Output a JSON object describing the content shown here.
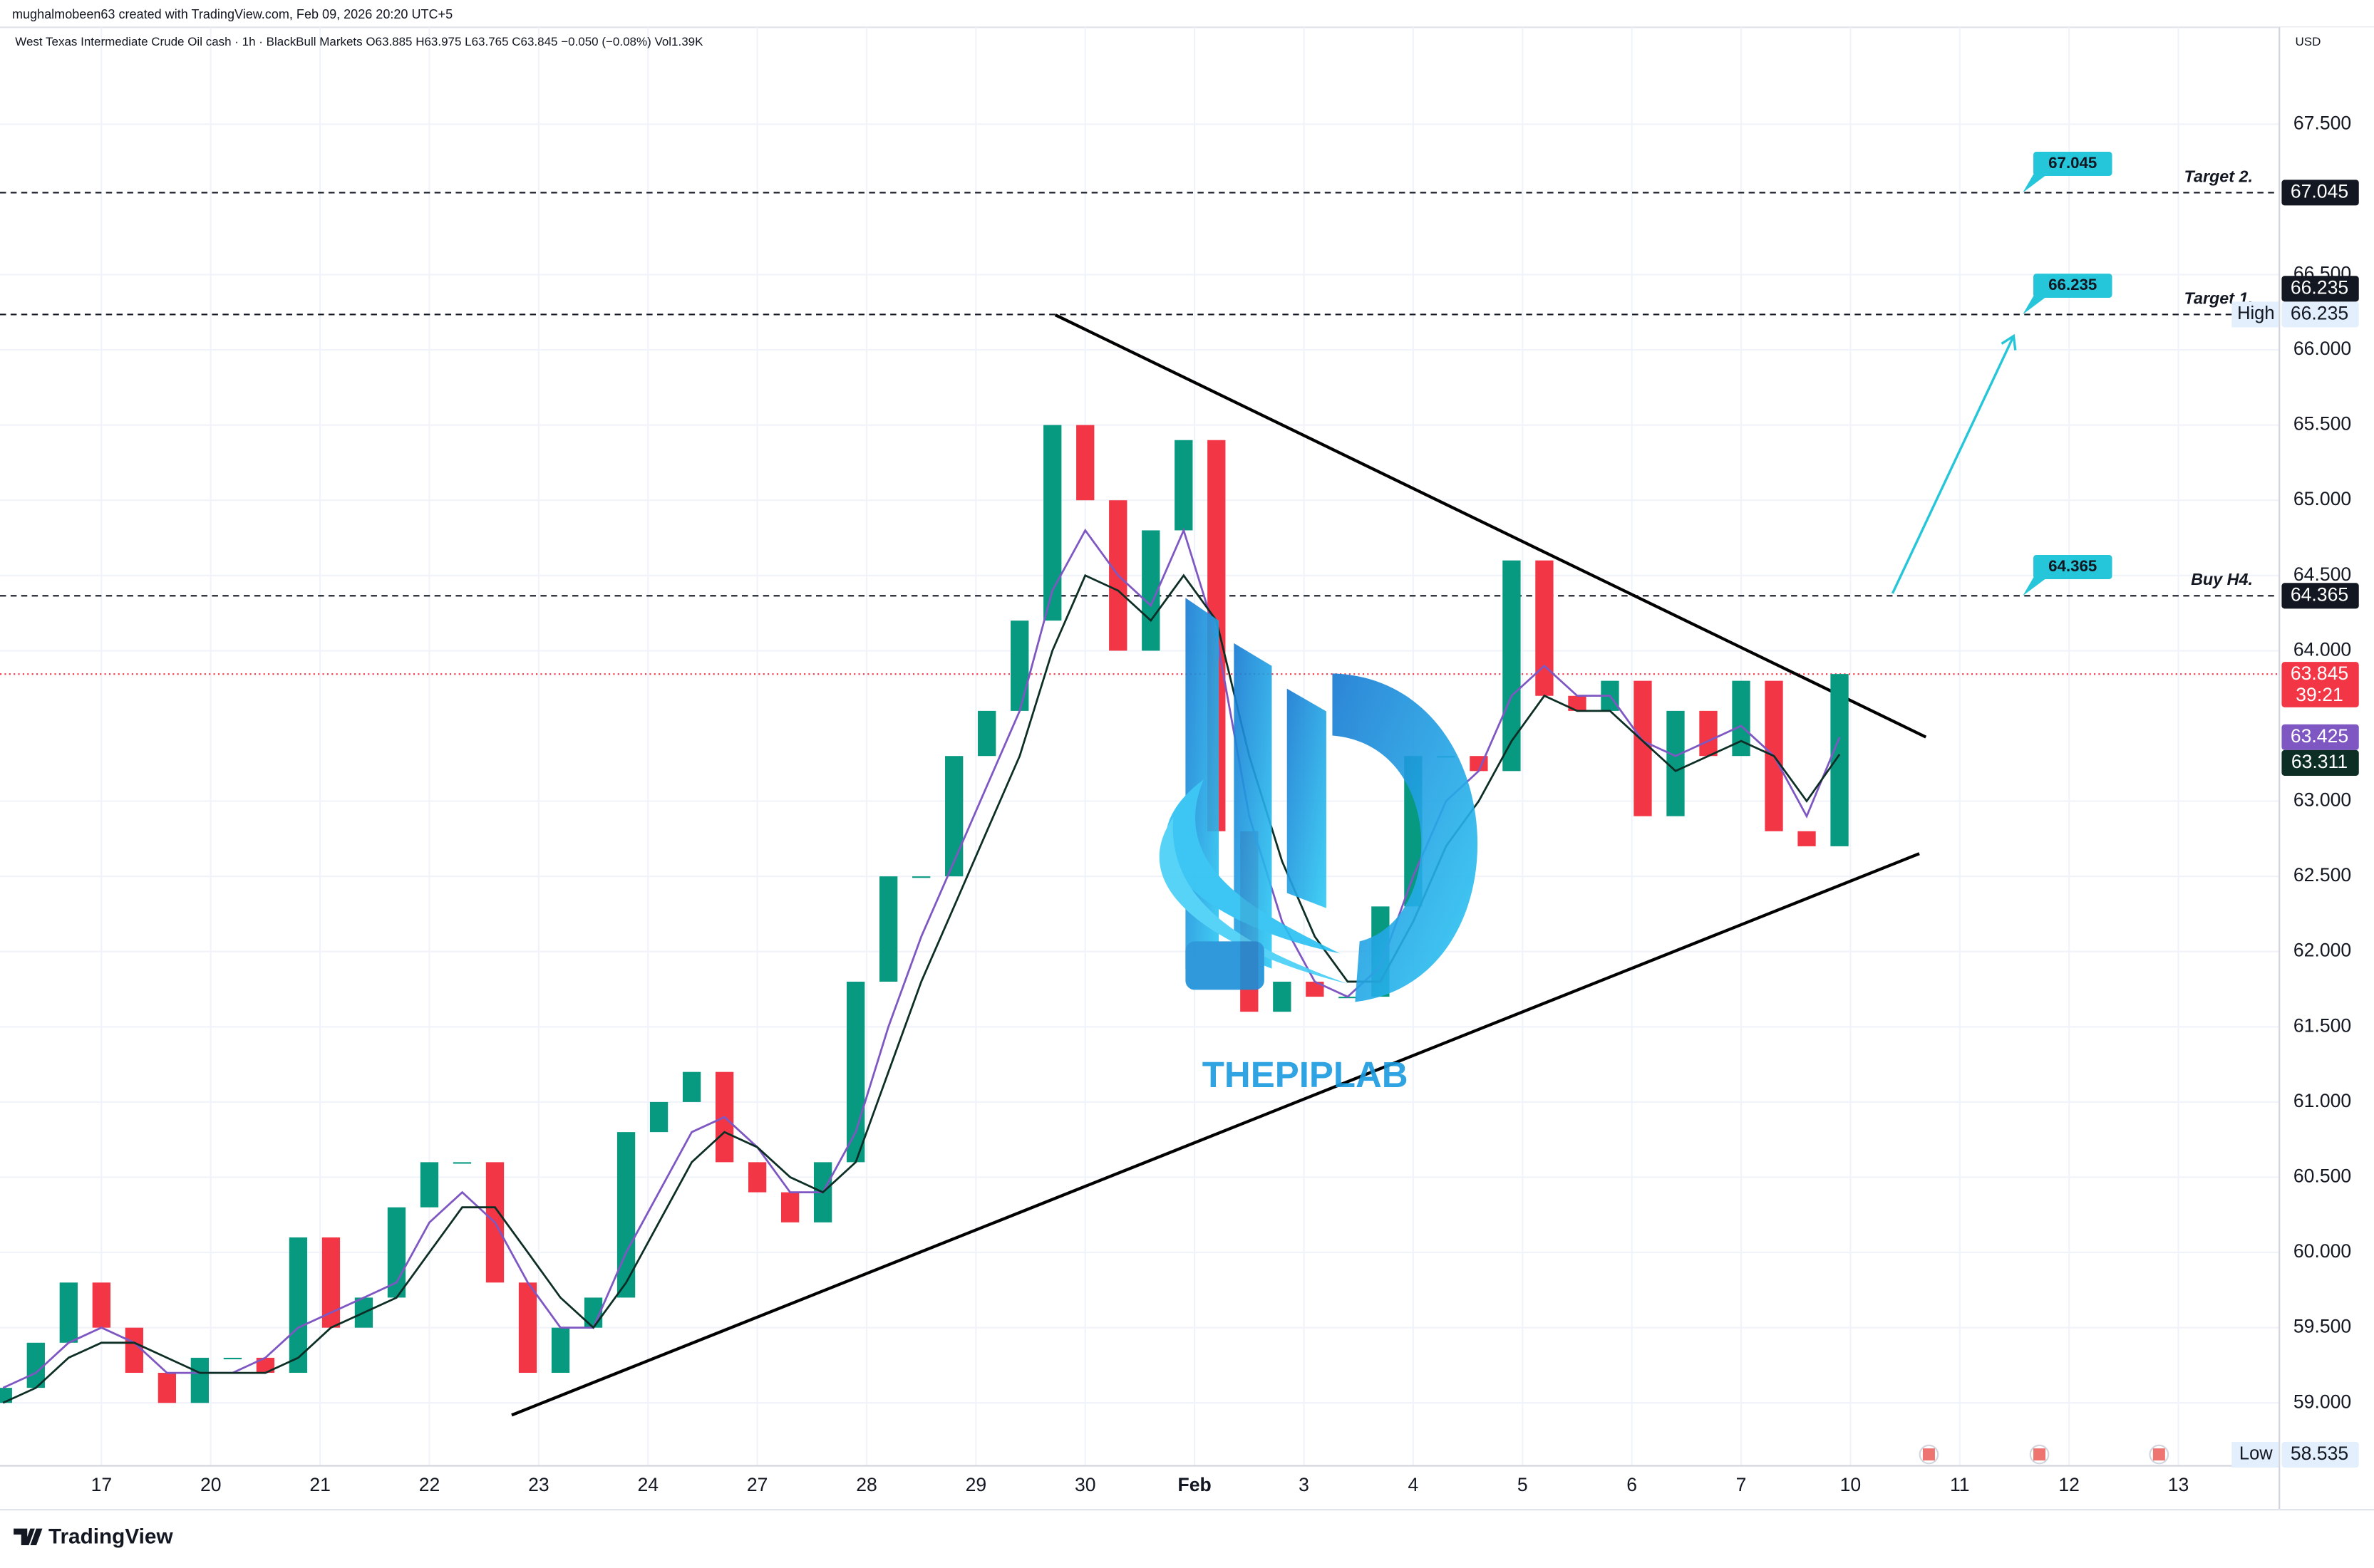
{
  "header": {
    "author_line": "mughalmobeen63 created with TradingView.com, Feb 09, 2026 20:20 UTC+5",
    "symbol_line": "West Texas Intermediate Crude Oil cash · 1h · BlackBull Markets  O63.885  H63.975  L63.765  C63.845  −0.050 (−0.08%)  Vol1.39K",
    "currency": "USD",
    "brand": "TradingView"
  },
  "chart_data": {
    "type": "candlestick",
    "x": [
      -0.9,
      -0.6,
      -0.3,
      0,
      0.3,
      0.6,
      0.9,
      1.2,
      1.5,
      1.8,
      2.1,
      2.4,
      2.7,
      3,
      3.3,
      3.6,
      3.9,
      4.2,
      4.5,
      4.8,
      5.1,
      5.4,
      5.7,
      6,
      6.3,
      6.6,
      6.9,
      7.2,
      7.5,
      7.8,
      8.1,
      8.4,
      8.7,
      9,
      9.3,
      9.6,
      9.9,
      10.2,
      10.5,
      10.8,
      11.1,
      11.4,
      11.7,
      12,
      12.3,
      12.6,
      12.9,
      13.2,
      13.5,
      13.8,
      14.1,
      14.4,
      14.7,
      15,
      15.3,
      15.6,
      15.9
    ],
    "open": [
      59.0,
      59.1,
      59.4,
      59.8,
      59.5,
      59.2,
      59.0,
      59.3,
      59.3,
      59.2,
      60.1,
      59.5,
      59.7,
      60.3,
      60.6,
      60.6,
      59.8,
      59.2,
      59.5,
      59.7,
      60.8,
      61.0,
      61.2,
      60.6,
      60.4,
      60.2,
      60.6,
      61.8,
      62.5,
      62.5,
      63.3,
      63.6,
      64.2,
      65.5,
      65.0,
      64.0,
      64.8,
      65.4,
      62.8,
      61.6,
      61.8,
      61.7,
      61.7,
      62.3,
      63.3,
      63.3,
      63.2,
      64.6,
      63.7,
      63.6,
      63.8,
      62.9,
      63.6,
      63.3,
      63.8,
      62.8,
      62.7
    ],
    "high": {
      "value": 66.235,
      "label": "High"
    },
    "low": {
      "value": 58.535,
      "label": "Low"
    },
    "close": [
      59.1,
      59.4,
      59.8,
      59.5,
      59.2,
      59.0,
      59.3,
      59.3,
      59.2,
      60.1,
      59.5,
      59.7,
      60.3,
      60.6,
      60.6,
      59.8,
      59.2,
      59.5,
      59.7,
      60.8,
      61.0,
      61.2,
      60.6,
      60.4,
      60.2,
      60.6,
      61.8,
      62.5,
      62.5,
      63.3,
      63.6,
      64.2,
      65.5,
      65.0,
      64.0,
      64.8,
      65.4,
      62.8,
      61.6,
      61.8,
      61.7,
      61.7,
      62.3,
      63.3,
      63.3,
      63.2,
      64.6,
      63.7,
      63.6,
      63.8,
      62.9,
      63.6,
      63.3,
      63.8,
      62.8,
      62.7,
      63.845
    ],
    "up_color": "#089981",
    "down_color": "#f23645",
    "overlays": [
      {
        "color": "#7e57c2",
        "values": [
          59.1,
          59.2,
          59.4,
          59.5,
          59.4,
          59.2,
          59.2,
          59.2,
          59.3,
          59.5,
          59.6,
          59.7,
          59.8,
          60.2,
          60.4,
          60.2,
          59.8,
          59.5,
          59.5,
          60.0,
          60.4,
          60.8,
          60.9,
          60.7,
          60.4,
          60.4,
          60.8,
          61.5,
          62.1,
          62.6,
          63.1,
          63.6,
          64.4,
          64.8,
          64.5,
          64.3,
          64.8,
          64.1,
          62.9,
          62.2,
          61.8,
          61.7,
          61.9,
          62.5,
          63.0,
          63.2,
          63.7,
          63.9,
          63.7,
          63.7,
          63.4,
          63.3,
          63.4,
          63.5,
          63.3,
          62.9,
          63.425
        ]
      },
      {
        "color": "#0d2e25",
        "values": [
          59.0,
          59.1,
          59.3,
          59.4,
          59.4,
          59.3,
          59.2,
          59.2,
          59.2,
          59.3,
          59.5,
          59.6,
          59.7,
          60.0,
          60.3,
          60.3,
          60.0,
          59.7,
          59.5,
          59.8,
          60.2,
          60.6,
          60.8,
          60.7,
          60.5,
          60.4,
          60.6,
          61.2,
          61.8,
          62.3,
          62.8,
          63.3,
          64.0,
          64.5,
          64.4,
          64.2,
          64.5,
          64.2,
          63.3,
          62.6,
          62.1,
          61.8,
          61.8,
          62.2,
          62.7,
          63.0,
          63.4,
          63.7,
          63.6,
          63.6,
          63.4,
          63.2,
          63.3,
          63.4,
          63.3,
          63.0,
          63.311
        ]
      }
    ],
    "xlim": [
      -0.928,
      19.917
    ],
    "xticks": [
      {
        "value": 0,
        "label": "17"
      },
      {
        "value": 1,
        "label": "20"
      },
      {
        "value": 2,
        "label": "21"
      },
      {
        "value": 3,
        "label": "22"
      },
      {
        "value": 4,
        "label": "23"
      },
      {
        "value": 5,
        "label": "24"
      },
      {
        "value": 6,
        "label": "27"
      },
      {
        "value": 7,
        "label": "28"
      },
      {
        "value": 8,
        "label": "29"
      },
      {
        "value": 9,
        "label": "30"
      },
      {
        "value": 10,
        "label": "Feb"
      },
      {
        "value": 11,
        "label": "3"
      },
      {
        "value": 12,
        "label": "4"
      },
      {
        "value": 13,
        "label": "5"
      },
      {
        "value": 14,
        "label": "6"
      },
      {
        "value": 15,
        "label": "7"
      },
      {
        "value": 16,
        "label": "10"
      },
      {
        "value": 17,
        "label": "11"
      },
      {
        "value": 18,
        "label": "12"
      },
      {
        "value": 19,
        "label": "13"
      }
    ],
    "ylim": [
      58.587,
      68.325
    ],
    "yticks": [
      {
        "value": 59,
        "label": "59.000"
      },
      {
        "value": 59.5,
        "label": "59.500"
      },
      {
        "value": 60,
        "label": "60.000"
      },
      {
        "value": 60.5,
        "label": "60.500"
      },
      {
        "value": 61,
        "label": "61.000"
      },
      {
        "value": 61.5,
        "label": "61.500"
      },
      {
        "value": 62,
        "label": "62.000"
      },
      {
        "value": 62.5,
        "label": "62.500"
      },
      {
        "value": 63,
        "label": "63.000"
      },
      {
        "value": 64,
        "label": "64.000"
      },
      {
        "value": 64.5,
        "label": "64.500"
      },
      {
        "value": 65,
        "label": "65.000"
      },
      {
        "value": 65.5,
        "label": "65.500"
      },
      {
        "value": 66,
        "label": "66.000"
      },
      {
        "value": 66.5,
        "label": "66.500"
      },
      {
        "value": 67.5,
        "label": "67.500"
      }
    ],
    "grid": true,
    "levels": [
      {
        "value": 67.045,
        "label": "Target 2."
      },
      {
        "value": 66.235,
        "label": "Target 1."
      },
      {
        "value": 64.365,
        "label": "Buy H4."
      }
    ],
    "last_price": {
      "value": 63.845,
      "color": "#f23645"
    },
    "countdown": "39:21",
    "trendlines": [
      {
        "x": [
          8.726,
          16.69
        ],
        "y": [
          66.232,
          63.426
        ]
      },
      {
        "x": [
          3.753,
          16.63
        ],
        "y": [
          58.919,
          62.651
        ]
      }
    ],
    "arrow": {
      "x": [
        16.385,
        17.493
      ],
      "y": [
        64.381,
        66.092
      ],
      "color": "#26c6da"
    },
    "watermark": "THEPIPLAB"
  }
}
